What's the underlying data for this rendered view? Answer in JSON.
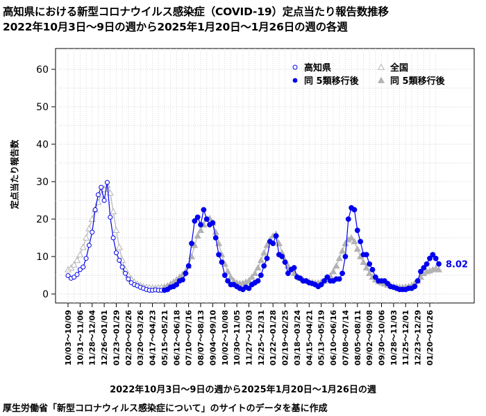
{
  "title_line1": "高知県における新型コロナウイルス感染症（COVID-19）定点当たり報告数推移",
  "title_line2": "2022年10月3日〜9日の週から2025年1月20日〜1月26日の週の各週",
  "x_caption": "2022年10月3日〜9日の週から2025年1月20日〜1月26日の週",
  "source_note": "厚生労働省「新型コロナウィルス感染症について」のサイトのデータを基に作成",
  "chart_data": {
    "type": "line",
    "title": "高知県における新型コロナウイルス感染症（COVID-19）定点当たり報告数推移",
    "xlabel": "2022年10月3日〜9日の週から2025年1月20日〜1月26日の週",
    "ylabel": "定点当たり報告数",
    "ylim": [
      0,
      60
    ],
    "yticks": [
      0,
      10,
      20,
      30,
      40,
      50,
      60
    ],
    "grid": true,
    "legend_position": "top-right",
    "last_value_label": "8.02",
    "tick_labels": [
      "10/03～10/09",
      "10/31～11/06",
      "11/28～12/04",
      "12/26～01/01",
      "01/23～01/29",
      "02/20～02/26",
      "03/20～03/26",
      "04/17～04/23",
      "05/15～05/21",
      "06/12～06/18",
      "07/10～07/16",
      "08/07～08/13",
      "09/04～09/10",
      "10/02～10/08",
      "10/30～11/05",
      "11/27～12/03",
      "12/25～12/31",
      "01/22～01/28",
      "02/19～02/25",
      "03/18～03/24",
      "04/15～04/21",
      "05/13～05/19",
      "06/10～06/16",
      "07/08～07/14",
      "08/05～08/11",
      "09/02～09/08",
      "09/30～10/06",
      "10/28～11/03",
      "11/25～12/01",
      "12/23～12/29",
      "01/20～01/26"
    ],
    "tick_week_index": [
      0,
      4,
      8,
      12,
      16,
      20,
      24,
      28,
      32,
      36,
      40,
      44,
      48,
      52,
      56,
      60,
      64,
      68,
      72,
      76,
      80,
      84,
      88,
      92,
      96,
      100,
      104,
      108,
      112,
      116,
      120
    ],
    "series": [
      {
        "name": "高知県",
        "color": "#0000ee",
        "values": [
          4.9,
          4.2,
          4.5,
          5.2,
          6.5,
          7.2,
          9.5,
          13.0,
          16.5,
          22.5,
          26.5,
          28.5,
          25.0,
          29.8,
          20.5,
          15.0,
          11.0,
          9.0,
          7.2,
          5.5,
          4.0,
          3.0,
          2.5,
          2.2,
          1.8,
          1.5,
          1.2,
          1.0,
          1.0,
          1.1,
          1.0,
          1.0,
          1.0,
          1.2,
          1.8,
          2.0,
          2.5,
          3.5,
          3.8,
          5.5,
          7.5,
          13.5,
          19.5,
          20.5,
          18.5,
          22.5,
          20.0,
          18.5,
          19.0,
          15.0,
          10.5,
          8.5,
          5.0,
          3.5,
          2.5,
          2.5,
          2.0,
          1.5,
          1.2,
          1.8,
          1.5,
          2.5,
          3.0,
          3.5,
          5.0,
          7.5,
          9.5,
          14.0,
          13.5,
          15.5,
          10.5,
          10.0,
          8.5,
          5.5,
          6.5,
          7.0,
          4.5,
          4.2,
          3.5,
          3.5,
          3.0,
          2.8,
          2.5,
          2.0,
          2.5,
          3.5,
          4.5,
          3.5,
          3.5,
          4.0,
          4.0,
          5.5,
          10.0,
          20.0,
          23.0,
          22.5,
          17.0,
          14.0,
          10.5,
          10.5,
          8.0,
          6.5,
          4.5,
          3.5,
          3.5,
          3.5,
          2.8,
          2.0,
          1.8,
          1.5,
          1.2,
          1.2,
          1.2,
          1.5,
          1.5,
          2.0,
          3.5,
          6.0,
          7.0,
          8.0,
          9.5,
          10.5,
          9.5,
          8.02
        ]
      },
      {
        "name": "全国",
        "color": "#b3b3b3",
        "values": [
          6.5,
          7.0,
          7.8,
          9.0,
          10.5,
          12.5,
          15.0,
          17.5,
          20.0,
          22.5,
          24.5,
          26.5,
          28.0,
          29.0,
          27.0,
          22.0,
          17.0,
          12.5,
          9.0,
          6.5,
          5.0,
          4.0,
          3.2,
          2.7,
          2.3,
          2.0,
          1.8,
          1.7,
          1.6,
          1.6,
          1.7,
          1.8,
          1.9,
          2.2,
          2.7,
          3.2,
          3.8,
          4.5,
          5.2,
          6.0,
          7.5,
          10.0,
          13.0,
          15.5,
          17.0,
          18.5,
          20.0,
          20.2,
          19.0,
          16.5,
          13.5,
          10.5,
          8.0,
          6.0,
          4.5,
          3.5,
          3.0,
          2.8,
          2.9,
          3.2,
          3.6,
          4.5,
          5.5,
          7.0,
          9.0,
          11.0,
          13.0,
          14.5,
          15.5,
          16.0,
          13.5,
          11.0,
          9.0,
          7.5,
          6.5,
          5.5,
          4.8,
          4.2,
          3.8,
          3.5,
          3.3,
          3.1,
          3.0,
          3.0,
          3.2,
          3.5,
          4.0,
          4.8,
          6.0,
          7.5,
          9.5,
          11.5,
          13.5,
          14.5,
          15.0,
          14.0,
          12.0,
          10.0,
          8.5,
          7.0,
          5.5,
          4.5,
          3.8,
          3.3,
          3.0,
          2.7,
          2.4,
          2.2,
          2.0,
          1.9,
          1.8,
          1.8,
          1.9,
          2.0,
          2.3,
          2.8,
          3.5,
          4.5,
          5.5,
          6.0,
          6.2,
          6.5,
          6.8,
          6.5
        ]
      }
    ],
    "legend": {
      "kochi_before": "高知県",
      "national_before": "全国",
      "kochi_after": "同 5類移行後",
      "national_after": "同 5類移行後"
    },
    "category_5_shift_week_index": 32
  }
}
